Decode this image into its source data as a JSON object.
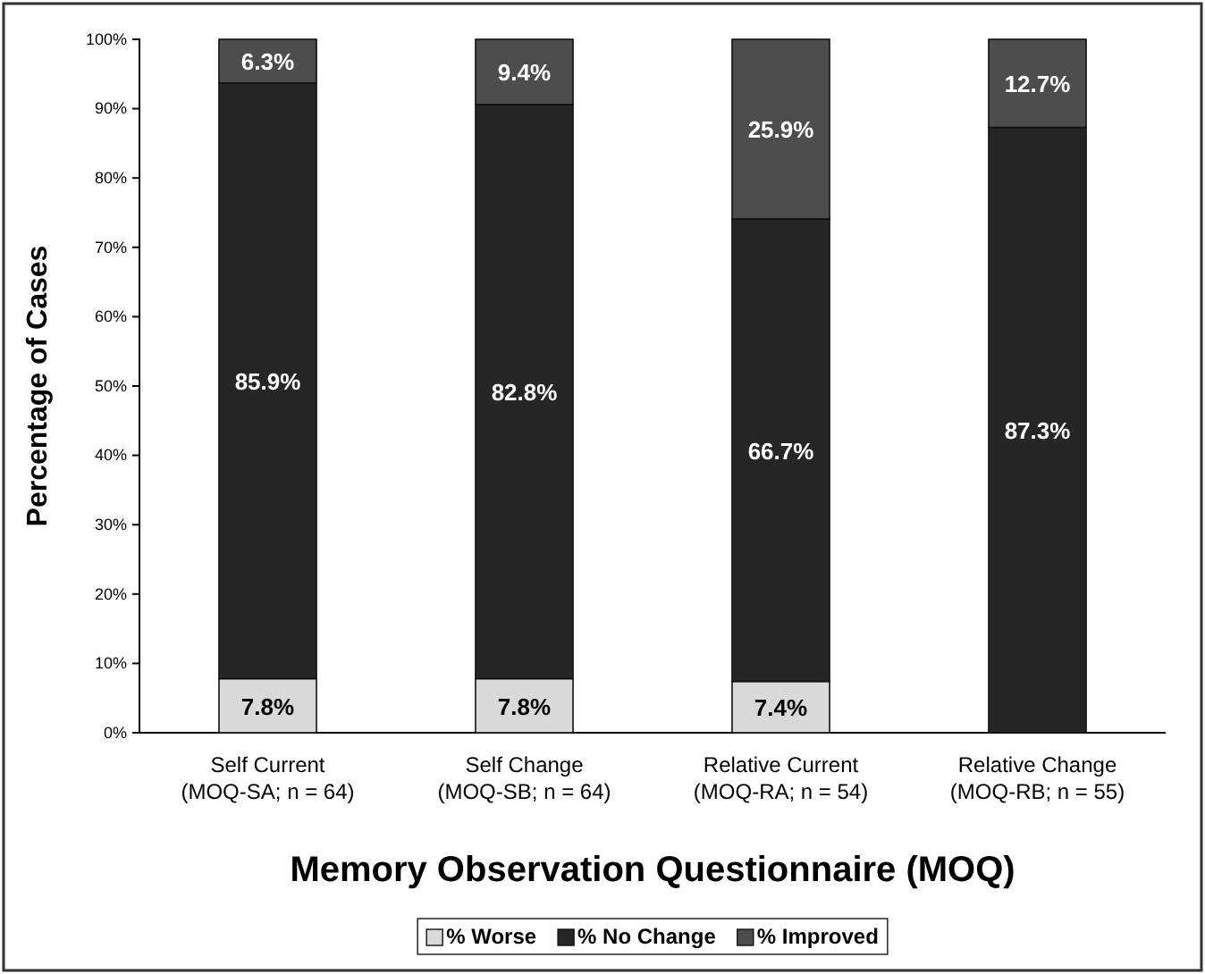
{
  "chart_data": {
    "type": "bar",
    "stacked": true,
    "xlabel": "Memory Observation Questionnaire (MOQ)",
    "ylabel": "Percentage of Cases",
    "categories": [
      "Self Current\n(MOQ-SA; n = 64)",
      "Self Change\n(MOQ-SB; n = 64)",
      "Relative Current\n(MOQ-RA; n = 54)",
      "Relative Change\n(MOQ-RB; n = 55)"
    ],
    "series": [
      {
        "name": "% Worse",
        "color": "#d9d9d9",
        "values": [
          7.8,
          7.8,
          7.4,
          0
        ],
        "value_labels": [
          "7.8%",
          "7.8%",
          "7.4%",
          null
        ]
      },
      {
        "name": "% No Change",
        "color": "#262626",
        "values": [
          85.9,
          82.8,
          66.7,
          87.3
        ],
        "value_labels": [
          "85.9%",
          "82.8%",
          "66.7%",
          "87.3%"
        ]
      },
      {
        "name": "% Improved",
        "color": "#4d4d4d",
        "values": [
          6.3,
          9.4,
          25.9,
          12.7
        ],
        "value_labels": [
          "6.3%",
          "9.4%",
          "25.9%",
          "12.7%"
        ]
      }
    ],
    "ylim": [
      0,
      100
    ],
    "yticks": [
      {
        "value": 0,
        "label": "0%"
      },
      {
        "value": 10,
        "label": "10%"
      },
      {
        "value": 20,
        "label": "20%"
      },
      {
        "value": 30,
        "label": "30%"
      },
      {
        "value": 40,
        "label": "40%"
      },
      {
        "value": 50,
        "label": "50%"
      },
      {
        "value": 60,
        "label": "60%"
      },
      {
        "value": 70,
        "label": "70%"
      },
      {
        "value": 80,
        "label": "80%"
      },
      {
        "value": 90,
        "label": "90%"
      },
      {
        "value": 100,
        "label": "100%"
      }
    ],
    "legend": "bottom"
  }
}
